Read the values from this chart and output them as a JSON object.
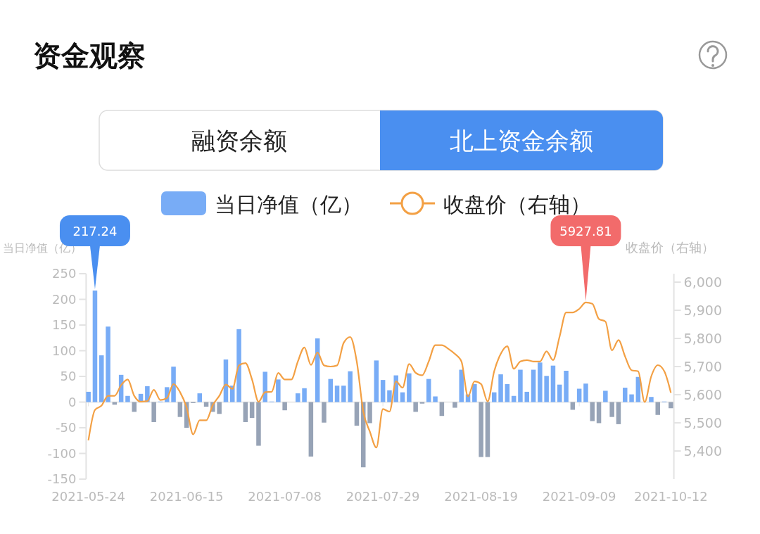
{
  "chart_data": {
    "type": "bar",
    "title": "资金观察",
    "annotations": [
      "融资余额",
      "北上资金余额"
    ],
    "categories": [
      "2021-05-24",
      null,
      null,
      null,
      null,
      null,
      null,
      null,
      null,
      null,
      null,
      null,
      null,
      null,
      null,
      "2021-06-15",
      null,
      null,
      null,
      null,
      null,
      null,
      null,
      null,
      null,
      null,
      null,
      null,
      null,
      null,
      "2021-07-08",
      null,
      null,
      null,
      null,
      null,
      null,
      null,
      null,
      null,
      null,
      null,
      null,
      null,
      null,
      "2021-07-29",
      null,
      null,
      null,
      null,
      null,
      null,
      null,
      null,
      null,
      null,
      null,
      null,
      null,
      null,
      "2021-08-19",
      null,
      null,
      null,
      null,
      null,
      null,
      null,
      null,
      null,
      null,
      null,
      null,
      null,
      null,
      "2021-09-09",
      null,
      null,
      null,
      null,
      null,
      null,
      null,
      null,
      null,
      null,
      null,
      null,
      null,
      "2021-10-12"
    ],
    "ylabel": "当日净值（亿）",
    "y2label": "收盘价（右轴）",
    "ylim": [
      -150,
      250
    ],
    "yticks": [
      -150,
      -100,
      -50,
      0,
      50,
      100,
      150,
      200,
      250
    ],
    "y2lim": [
      5300,
      6030
    ],
    "y2ticks": [
      {
        "value": 5400,
        "label": "5,400"
      },
      {
        "value": 5500,
        "label": "5,500"
      },
      {
        "value": 5600,
        "label": "5,600"
      },
      {
        "value": 5700,
        "label": "5,700"
      },
      {
        "value": 5800,
        "label": "5,800"
      },
      {
        "value": 5900,
        "label": "5,900"
      },
      {
        "value": 6000,
        "label": "6,000"
      }
    ],
    "legend": "top",
    "series": [
      {
        "name": "当日净值（亿）",
        "color": "#78acf6",
        "values": [
          20,
          217.24,
          91,
          147,
          -5,
          53,
          12,
          -19,
          16,
          31,
          -39,
          1,
          29,
          69,
          -29,
          -50,
          -2,
          17,
          -9,
          -19,
          -23,
          83,
          32,
          142,
          -39,
          -31,
          -85,
          59,
          1,
          44,
          -16,
          null,
          17,
          27,
          -106,
          124,
          -40,
          45,
          32,
          32,
          60,
          -46,
          -127,
          -41,
          81,
          43,
          23,
          52,
          19,
          56,
          -19,
          -3,
          45,
          11,
          -27,
          null,
          -11,
          63,
          15,
          35,
          -107,
          -107,
          19,
          54,
          35,
          12,
          63,
          20,
          63,
          77,
          51,
          71,
          34,
          61,
          -15,
          26,
          36,
          -37,
          -41,
          22,
          -29,
          -43,
          28,
          15,
          49,
          null,
          10,
          -25,
          1,
          -12
        ],
        "colors": [
          "#78acf6",
          "#78acf6",
          "#78acf6",
          "#78acf6",
          "#97a3b6",
          "#78acf6",
          "#78acf6",
          "#97a3b6",
          "#78acf6",
          "#78acf6",
          "#97a3b6",
          "#78acf6",
          "#78acf6",
          "#78acf6",
          "#97a3b6",
          "#97a3b6",
          "#97a3b6",
          "#78acf6",
          "#97a3b6",
          "#97a3b6",
          "#97a3b6",
          "#78acf6",
          "#78acf6",
          "#78acf6",
          "#97a3b6",
          "#97a3b6",
          "#97a3b6",
          "#78acf6",
          "#78acf6",
          "#78acf6",
          "#97a3b6",
          null,
          "#78acf6",
          "#78acf6",
          "#97a3b6",
          "#78acf6",
          "#97a3b6",
          "#78acf6",
          "#78acf6",
          "#78acf6",
          "#78acf6",
          "#97a3b6",
          "#97a3b6",
          "#97a3b6",
          "#78acf6",
          "#78acf6",
          "#78acf6",
          "#78acf6",
          "#78acf6",
          "#78acf6",
          "#97a3b6",
          "#97a3b6",
          "#78acf6",
          "#78acf6",
          "#97a3b6",
          null,
          "#97a3b6",
          "#78acf6",
          "#78acf6",
          "#78acf6",
          "#97a3b6",
          "#97a3b6",
          "#78acf6",
          "#78acf6",
          "#78acf6",
          "#78acf6",
          "#78acf6",
          "#78acf6",
          "#78acf6",
          "#78acf6",
          "#78acf6",
          "#78acf6",
          "#78acf6",
          "#78acf6",
          "#97a3b6",
          "#78acf6",
          "#78acf6",
          "#97a3b6",
          "#97a3b6",
          "#78acf6",
          "#97a3b6",
          "#97a3b6",
          "#78acf6",
          "#78acf6",
          "#78acf6",
          null,
          "#78acf6",
          "#97a3b6",
          "#78acf6",
          "#97a3b6"
        ],
        "value_labels": [
          null,
          "217.24",
          null,
          null,
          null,
          null,
          null,
          null,
          null,
          null,
          null,
          null,
          null,
          null,
          null,
          null,
          null,
          null,
          null,
          null,
          null,
          null,
          null,
          null,
          null,
          null,
          null,
          null,
          null,
          null,
          null,
          null,
          null,
          null,
          null,
          null,
          null,
          null,
          null,
          null,
          null,
          null,
          null,
          null,
          null,
          null,
          null,
          null,
          null,
          null,
          null,
          null,
          null,
          null,
          null,
          null,
          null,
          null,
          null,
          null,
          null,
          null,
          null,
          null,
          null,
          null,
          null,
          null,
          null,
          null,
          null,
          null,
          null,
          null,
          null,
          null,
          null,
          null,
          null,
          null,
          null,
          null,
          null,
          null,
          null,
          null,
          null,
          null,
          null,
          null
        ]
      },
      {
        "name": "收盘价（右轴）",
        "type": "line",
        "axis": "y2",
        "color": "#f3a044",
        "values": [
          5438,
          5546,
          5561,
          5596,
          5596,
          5634,
          5654,
          5596,
          5575,
          5577,
          5617,
          5581,
          5588,
          5638,
          5609,
          5555,
          5459,
          5509,
          5509,
          5563,
          5596,
          5636,
          5621,
          5704,
          5712,
          5654,
          5575,
          5609,
          5610,
          5677,
          5654,
          5654,
          5718,
          5768,
          5706,
          5750,
          5704,
          5700,
          5704,
          5784,
          5805,
          5718,
          5540,
          5469,
          5412,
          5549,
          5540,
          5647,
          5625,
          5709,
          5678,
          5669,
          5718,
          5776,
          5776,
          5763,
          5745,
          5718,
          5594,
          5647,
          5638,
          5576,
          5683,
          5745,
          5772,
          5692,
          5718,
          5723,
          5718,
          5718,
          5754,
          5723,
          5807,
          5892,
          5892,
          5905,
          5927.81,
          5923,
          5869,
          5860,
          5758,
          5794,
          5736,
          5687,
          5683,
          5574,
          5665,
          5705,
          5683,
          5607
        ],
        "value_labels": [
          null,
          null,
          null,
          null,
          null,
          null,
          null,
          null,
          null,
          null,
          null,
          null,
          null,
          null,
          null,
          null,
          null,
          null,
          null,
          null,
          null,
          null,
          null,
          null,
          null,
          null,
          null,
          null,
          null,
          null,
          null,
          null,
          null,
          null,
          null,
          null,
          null,
          null,
          null,
          null,
          null,
          null,
          null,
          null,
          null,
          null,
          null,
          null,
          null,
          null,
          null,
          null,
          null,
          null,
          null,
          null,
          null,
          null,
          null,
          null,
          null,
          null,
          null,
          null,
          null,
          null,
          null,
          null,
          null,
          null,
          null,
          null,
          null,
          null,
          null,
          null,
          "5927.81",
          null,
          null,
          null,
          null,
          null,
          null,
          null,
          null,
          null,
          null,
          null,
          null,
          null
        ]
      }
    ]
  }
}
